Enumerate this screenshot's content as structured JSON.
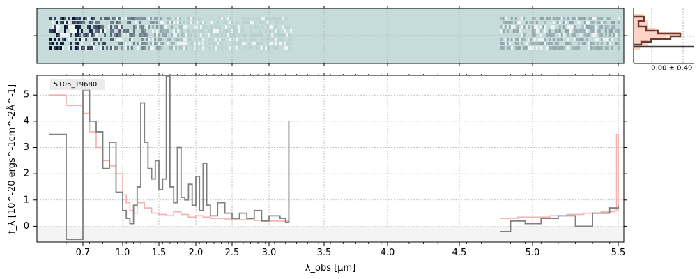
{
  "chart_data": [
    {
      "type": "heatmap",
      "panel": "2D spectrum",
      "xscale": "custom (spectral)",
      "grid": true,
      "regions_with_data": [
        [
          0.6,
          3.2
        ],
        [
          4.78,
          5.5
        ]
      ]
    },
    {
      "type": "line",
      "panel": "1D spectrum",
      "label": "5105_19680",
      "xlabel": "λ_obs [μm]",
      "ylabel": "f_λ [10^-20 ergs^-1cm^-2Å^-1]",
      "x_ticks": [
        "0.7",
        "1.0",
        "1.5",
        "2.0",
        "2.5",
        "3.0",
        "3.5",
        "4.0",
        "4.5",
        "5.0",
        "5.5"
      ],
      "y_ticks": [
        "0",
        "1",
        "2",
        "3",
        "4",
        "5"
      ],
      "ylim": [
        -0.6,
        5.75
      ],
      "xlim": [
        0.6,
        5.52
      ],
      "grid": true,
      "series": [
        {
          "role": "data",
          "color": "#808080",
          "x": [
            0.6,
            0.65,
            0.7,
            0.75,
            0.8,
            0.85,
            0.9,
            0.95,
            1.0,
            1.05,
            1.1,
            1.15,
            1.2,
            1.25,
            1.3,
            1.35,
            1.4,
            1.45,
            1.5,
            1.55,
            1.6,
            1.65,
            1.7,
            1.75,
            1.8,
            1.85,
            1.9,
            1.95,
            2.0,
            2.05,
            2.1,
            2.15,
            2.2,
            2.3,
            2.4,
            2.5,
            2.6,
            2.7,
            2.8,
            2.9,
            3.0,
            3.1,
            3.15,
            3.18,
            4.78,
            4.85,
            4.95,
            5.05,
            5.15,
            5.25,
            5.35,
            5.45,
            5.5
          ],
          "y": [
            3.5,
            -0.5,
            5.2,
            4.0,
            3.6,
            2.2,
            3.2,
            1.3,
            0.6,
            0.3,
            0.1,
            0.8,
            1.5,
            4.7,
            3.2,
            2.2,
            1.8,
            2.5,
            1.4,
            1.8,
            5.7,
            1.5,
            0.9,
            3.0,
            1.1,
            1.0,
            1.6,
            0.8,
            1.9,
            0.6,
            2.4,
            0.8,
            0.4,
            0.9,
            0.5,
            0.3,
            0.5,
            0.3,
            0.6,
            0.2,
            0.4,
            0.3,
            0.15,
            4.0,
            -0.2,
            0.2,
            0.1,
            0.3,
            0.4,
            0.0,
            0.5,
            0.7,
            0.8
          ]
        },
        {
          "role": "model",
          "color": "#f4a0a0",
          "x": [
            0.6,
            0.65,
            0.7,
            0.75,
            0.8,
            0.85,
            0.9,
            0.95,
            1.0,
            1.05,
            1.1,
            1.15,
            1.2,
            1.3,
            1.4,
            1.5,
            1.6,
            1.7,
            1.8,
            1.9,
            2.0,
            2.1,
            2.2,
            2.3,
            2.4,
            2.5,
            2.6,
            2.7,
            2.8,
            2.9,
            3.0,
            3.1,
            3.18,
            4.78,
            4.9,
            5.0,
            5.1,
            5.2,
            5.3,
            5.4,
            5.48,
            5.49,
            5.5
          ],
          "y": [
            5.0,
            4.6,
            4.3,
            3.6,
            3.0,
            2.5,
            2.3,
            2.0,
            1.2,
            0.9,
            0.6,
            0.5,
            0.9,
            0.7,
            0.5,
            0.45,
            0.4,
            0.55,
            0.45,
            0.35,
            0.4,
            0.35,
            0.3,
            0.3,
            0.28,
            0.25,
            0.25,
            0.25,
            0.22,
            0.22,
            0.2,
            0.2,
            3.9,
            0.3,
            0.35,
            0.35,
            0.4,
            0.45,
            0.5,
            0.55,
            0.6,
            3.5,
            0.6
          ]
        }
      ]
    },
    {
      "type": "bar",
      "panel": "residual histogram",
      "annotation": "-0.00 ± 0.49",
      "orientation": "horizontal",
      "colors": {
        "fill": "#fcd3c6",
        "edge": "#6b3a2e",
        "line": "#3a3a3a"
      }
    }
  ]
}
